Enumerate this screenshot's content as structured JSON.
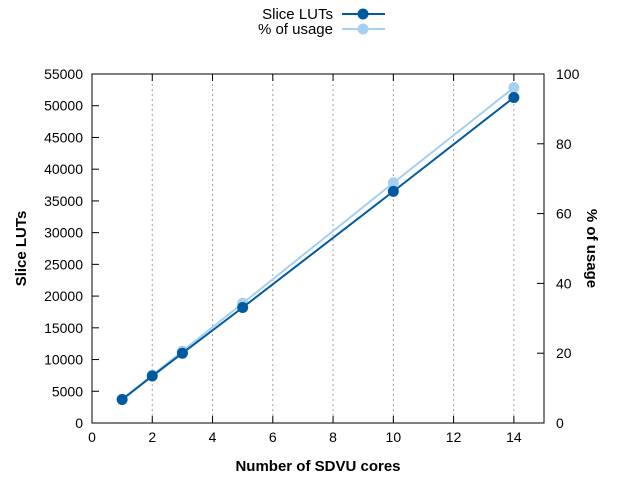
{
  "chart_data": {
    "type": "line",
    "title": "",
    "xlabel": "Number of SDVU cores",
    "ylabel": "Slice LUTs",
    "y2label": "% of usage",
    "xlim": [
      0,
      15
    ],
    "ylim": [
      0,
      55000
    ],
    "y2lim": [
      0,
      100
    ],
    "xticks": [
      0,
      2,
      4,
      6,
      8,
      10,
      12,
      14
    ],
    "yticks": [
      0,
      5000,
      10000,
      15000,
      20000,
      25000,
      30000,
      35000,
      40000,
      45000,
      50000,
      55000
    ],
    "y2ticks": [
      0,
      20,
      40,
      60,
      80,
      100
    ],
    "grid": "x-major-dotted",
    "legend_position": "top-center",
    "x": [
      1,
      2,
      3,
      5,
      10,
      14
    ],
    "series": [
      {
        "name": "Slice LUTs",
        "axis": "left",
        "color": "#005aa0",
        "values": [
          3700,
          7400,
          11000,
          18200,
          36500,
          51300
        ]
      },
      {
        "name": "% of usage",
        "axis": "right",
        "color": "#a6cff0",
        "values": [
          6.8,
          13.7,
          20.6,
          34.3,
          68.8,
          96.1
        ]
      }
    ]
  }
}
